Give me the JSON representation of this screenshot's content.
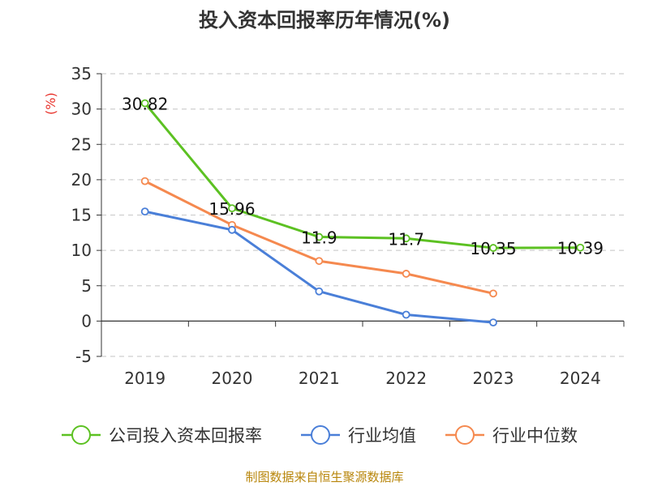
{
  "chart_data": {
    "type": "line",
    "title": "投入资本回报率历年情况(%)",
    "ylabel": "(%)",
    "xlabel": "",
    "categories": [
      "2019",
      "2020",
      "2021",
      "2022",
      "2023",
      "2024"
    ],
    "ylim": [
      -5,
      35
    ],
    "yticks": [
      -5,
      0,
      5,
      10,
      15,
      20,
      25,
      30,
      35
    ],
    "grid": true,
    "legend_position": "bottom",
    "series": [
      {
        "name": "公司投入资本回报率",
        "color": "#5cc122",
        "values": [
          30.82,
          15.96,
          11.9,
          11.7,
          10.35,
          10.39
        ],
        "labels": [
          "30.82",
          "15.96",
          "11.9",
          "11.7",
          "10.35",
          "10.39"
        ]
      },
      {
        "name": "行业均值",
        "color": "#4a7fd8",
        "values": [
          15.5,
          12.9,
          4.2,
          0.9,
          -0.2,
          null
        ]
      },
      {
        "name": "行业中位数",
        "color": "#f5894f",
        "values": [
          19.8,
          13.6,
          8.5,
          6.7,
          3.9,
          null
        ]
      }
    ]
  },
  "footer": {
    "source": "制图数据来自恒生聚源数据库"
  }
}
